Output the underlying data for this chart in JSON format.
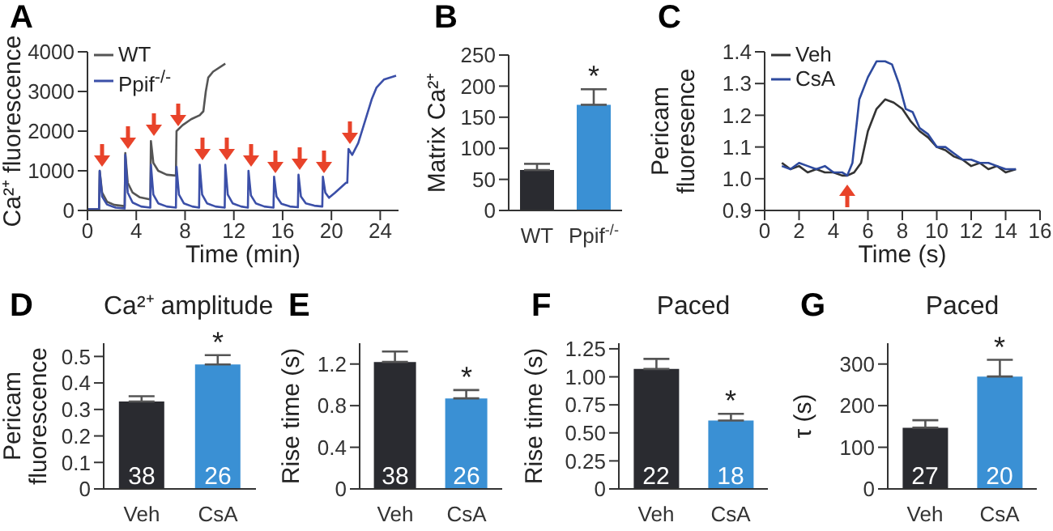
{
  "chart_data": [
    {
      "type": "line",
      "annotations": [
        "A"
      ],
      "xlabel": "Time (min)",
      "ylabel": "Ca²⁺ fluorescence",
      "xlim": [
        0,
        25.5
      ],
      "xticks": [
        0,
        4,
        8,
        12,
        16,
        20,
        24
      ],
      "ylim": [
        0,
        4000
      ],
      "yticks": [
        0,
        1000,
        2000,
        3000,
        4000
      ],
      "legend": "top left",
      "series": [
        {
          "name": "WT",
          "color": "#555555",
          "x": [
            0,
            0.95,
            1.0,
            1.2,
            1.6,
            2.2,
            3.0,
            3.05,
            3.1,
            3.3,
            3.7,
            4.3,
            5.1,
            5.15,
            5.2,
            5.4,
            5.8,
            6.5,
            7.2,
            7.25,
            7.3,
            7.8,
            8.5,
            9.2,
            9.5,
            9.7,
            9.9,
            10.3,
            11.3
          ],
          "values": [
            30,
            30,
            1000,
            450,
            220,
            140,
            110,
            110,
            1450,
            700,
            450,
            330,
            280,
            280,
            1750,
            1200,
            1000,
            900,
            880,
            880,
            2000,
            2150,
            2300,
            2400,
            2500,
            3000,
            3350,
            3500,
            3700
          ]
        },
        {
          "name": "Ppif$^{-/-}$",
          "color": "#3b4fa8",
          "x": [
            0,
            0.95,
            1.0,
            1.2,
            1.6,
            2.3,
            3.05,
            3.1,
            3.3,
            3.7,
            4.4,
            5.15,
            5.2,
            5.4,
            5.8,
            6.5,
            7.25,
            7.3,
            7.5,
            7.9,
            8.6,
            9.15,
            9.2,
            9.4,
            9.8,
            10.5,
            11.25,
            11.3,
            11.5,
            11.9,
            12.6,
            13.15,
            13.2,
            13.4,
            13.8,
            14.5,
            15.25,
            15.3,
            15.5,
            15.9,
            16.6,
            17.25,
            17.3,
            17.5,
            17.9,
            18.6,
            19.25,
            19.3,
            19.5,
            19.8,
            20.3,
            21.2,
            21.3,
            21.4,
            21.7,
            22.2,
            22.8,
            23.3,
            23.7,
            24.3,
            25.3
          ],
          "values": [
            30,
            30,
            1000,
            350,
            150,
            70,
            50,
            1400,
            450,
            200,
            100,
            70,
            1150,
            400,
            180,
            100,
            70,
            1100,
            400,
            180,
            100,
            70,
            1150,
            400,
            180,
            100,
            70,
            1150,
            400,
            180,
            100,
            70,
            1000,
            380,
            180,
            100,
            70,
            850,
            350,
            170,
            100,
            80,
            900,
            350,
            180,
            120,
            100,
            850,
            450,
            320,
            450,
            700,
            700,
            1550,
            1400,
            1700,
            2300,
            2800,
            3100,
            3300,
            3400
          ]
        }
      ]
    },
    {
      "type": "bar",
      "annotations": [
        "B",
        "*"
      ],
      "ylabel": "Matrix Ca²⁺",
      "categories": [
        "WT",
        "Ppif$^{-/-}$"
      ],
      "values": [
        65,
        170
      ],
      "errors": [
        [
          65,
          75
        ],
        [
          170,
          195
        ]
      ],
      "colors": [
        "#2a2b30",
        "#3a90d4"
      ],
      "ylim": [
        0,
        250
      ],
      "yticks": [
        0,
        50,
        100,
        150,
        200,
        250
      ]
    },
    {
      "type": "line",
      "annotations": [
        "C"
      ],
      "xlabel": "Time (s)",
      "ylabel": "Pericam\nfluoresence",
      "xlim": [
        0,
        16
      ],
      "xticks": [
        0,
        2,
        4,
        6,
        8,
        10,
        12,
        14,
        16
      ],
      "ylim": [
        0.9,
        1.4
      ],
      "yticks": [
        0.9,
        {
          "value": 1,
          "label": "1.0"
        },
        1.1,
        1.2,
        1.3,
        1.4
      ],
      "legend": "top left",
      "series": [
        {
          "name": "Veh",
          "color": "#333333",
          "x": [
            1,
            1.5,
            2,
            2.5,
            3,
            3.5,
            4,
            4.5,
            4.8,
            5.2,
            5.6,
            6,
            6.5,
            7,
            7.5,
            8,
            8.5,
            9,
            9.5,
            10,
            10.5,
            11,
            11.5,
            12,
            12.5,
            13,
            13.5,
            14,
            14.6
          ],
          "values": [
            1.05,
            1.03,
            1.04,
            1.02,
            1.03,
            1.02,
            1.02,
            1.01,
            1.01,
            1.02,
            1.05,
            1.15,
            1.22,
            1.25,
            1.24,
            1.22,
            1.18,
            1.15,
            1.13,
            1.1,
            1.09,
            1.07,
            1.06,
            1.04,
            1.05,
            1.03,
            1.04,
            1.02,
            1.03
          ]
        },
        {
          "name": "CsA",
          "color": "#2e4a9e",
          "x": [
            1,
            1.5,
            2,
            2.5,
            3,
            3.5,
            4,
            4.5,
            4.8,
            5.1,
            5.5,
            6,
            6.5,
            7,
            7.4,
            7.8,
            8.2,
            8.6,
            9,
            9.5,
            10,
            10.5,
            11,
            11.5,
            12,
            12.5,
            13,
            13.5,
            14,
            14.6
          ],
          "values": [
            1.04,
            1.03,
            1.05,
            1.04,
            1.03,
            1.04,
            1.02,
            1.02,
            1.01,
            1.05,
            1.25,
            1.32,
            1.37,
            1.37,
            1.36,
            1.3,
            1.22,
            1.21,
            1.16,
            1.14,
            1.1,
            1.1,
            1.08,
            1.06,
            1.06,
            1.05,
            1.05,
            1.04,
            1.03,
            1.03
          ]
        }
      ]
    },
    {
      "type": "bar",
      "title": "Ca²⁺ amplitude",
      "annotations": [
        "D",
        "38",
        "26",
        "*"
      ],
      "ylabel": "Pericam\nfluorescence",
      "categories": [
        "Veh",
        "CsA"
      ],
      "values": [
        0.33,
        0.47
      ],
      "errors": [
        [
          0.33,
          0.35
        ],
        [
          0.47,
          0.505
        ]
      ],
      "colors": [
        "#2a2b30",
        "#3a90d4"
      ],
      "ylim": [
        0,
        0.55
      ],
      "yticks": [
        0,
        0.1,
        0.2,
        0.3,
        0.4,
        0.5
      ]
    },
    {
      "type": "bar",
      "annotations": [
        "E",
        "38",
        "26",
        "*"
      ],
      "ylabel": "Rise time (s)",
      "categories": [
        "Veh",
        "CsA"
      ],
      "values": [
        1.22,
        0.87
      ],
      "errors": [
        [
          1.22,
          1.32
        ],
        [
          0.87,
          0.95
        ]
      ],
      "colors": [
        "#2a2b30",
        "#3a90d4"
      ],
      "ylim": [
        0,
        1.4
      ],
      "yticks": [
        0,
        0.4,
        0.8,
        1.2
      ]
    },
    {
      "type": "bar",
      "title": "Paced",
      "annotations": [
        "F",
        "22",
        "18",
        "*"
      ],
      "ylabel": "Rise time (s)",
      "categories": [
        "Veh",
        "CsA"
      ],
      "values": [
        1.07,
        0.61
      ],
      "errors": [
        [
          1.07,
          1.16
        ],
        [
          0.61,
          0.67
        ]
      ],
      "colors": [
        "#2a2b30",
        "#3a90d4"
      ],
      "ylim": [
        0,
        1.3
      ],
      "yticks": [
        0,
        {
          "value": 0.25,
          "label": "0.25"
        },
        {
          "value": 0.5,
          "label": "0.50"
        },
        {
          "value": 0.75,
          "label": "0.75"
        },
        {
          "value": 1,
          "label": "1.00"
        },
        {
          "value": 1.25,
          "label": "1.25"
        }
      ]
    },
    {
      "type": "bar",
      "title": "Paced",
      "annotations": [
        "G",
        "27",
        "20",
        "*"
      ],
      "ylabel": "τ (s)",
      "categories": [
        "Veh",
        "CsA"
      ],
      "values": [
        147,
        270
      ],
      "errors": [
        [
          147,
          165
        ],
        [
          270,
          310
        ]
      ],
      "colors": [
        "#2a2b30",
        "#3a90d4"
      ],
      "ylim": [
        0,
        350
      ],
      "yticks": [
        0,
        100,
        200,
        300
      ]
    }
  ]
}
